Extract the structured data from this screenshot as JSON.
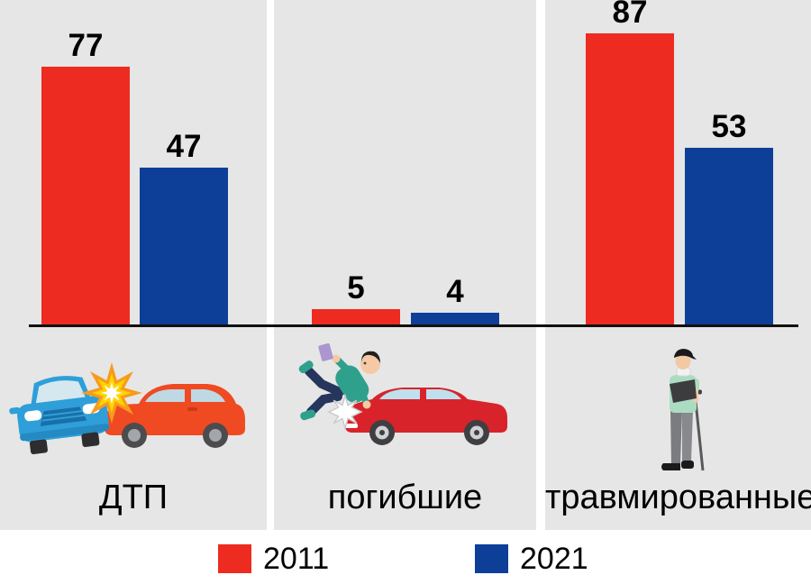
{
  "chart_data": {
    "type": "bar",
    "title": "",
    "categories": [
      "ДТП",
      "погибшие",
      "травмированные"
    ],
    "series": [
      {
        "name": "2011",
        "color": "#ee2b21",
        "values": [
          77,
          5,
          87
        ]
      },
      {
        "name": "2021",
        "color": "#0d3f98",
        "values": [
          47,
          4,
          53
        ]
      }
    ],
    "ylim": [
      0,
      96
    ],
    "grid": false,
    "legend_position": "bottom",
    "panel_background": "#e6e6e6",
    "baseline_color": "#111111",
    "panels": [
      {
        "category": "ДТП",
        "icon": "car-crash-icon"
      },
      {
        "category": "погибшие",
        "icon": "pedestrian-hit-by-car-icon"
      },
      {
        "category": "травмированные",
        "icon": "injured-person-with-crutch-icon"
      }
    ]
  }
}
